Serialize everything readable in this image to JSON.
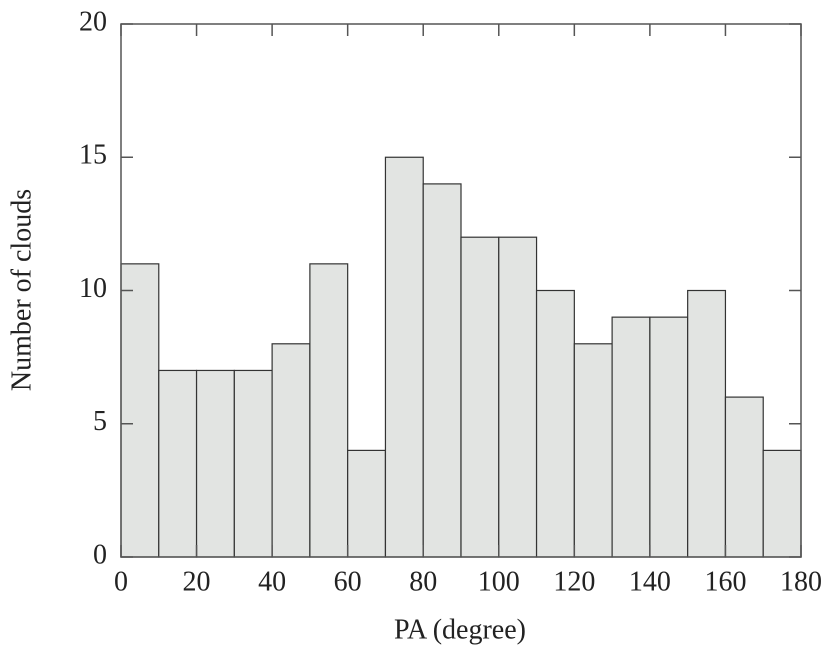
{
  "chart_data": {
    "type": "histogram",
    "xlabel": "PA (degree)",
    "ylabel": "Number of clouds",
    "bins": [
      0,
      10,
      20,
      30,
      40,
      50,
      60,
      70,
      80,
      90,
      100,
      110,
      120,
      130,
      140,
      150,
      160,
      170,
      180
    ],
    "counts": [
      11,
      7,
      7,
      7,
      8,
      11,
      4,
      15,
      14,
      12,
      12,
      10,
      8,
      9,
      9,
      10,
      6,
      4
    ],
    "color": "#e2e4e2",
    "edgecolor": "#333333",
    "xlim": [
      0,
      180
    ],
    "xticks": [
      0,
      20,
      40,
      60,
      80,
      100,
      120,
      140,
      160,
      180
    ],
    "ylim": [
      0,
      20
    ],
    "yticks": [
      0,
      5,
      10,
      15,
      20
    ]
  }
}
